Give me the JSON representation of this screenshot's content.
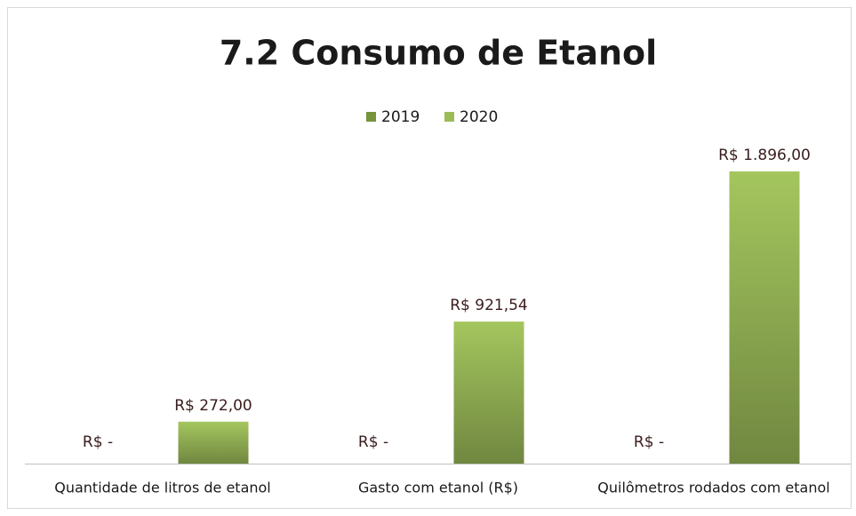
{
  "chart_data": {
    "type": "bar",
    "title": "7.2 Consumo de Etanol",
    "categories": [
      "Quantidade de litros de etanol",
      "Gasto com etanol (R$)",
      "Quilômetros rodados com etanol"
    ],
    "series": [
      {
        "name": "2019",
        "color": "#77933c",
        "values": [
          0,
          0,
          0
        ],
        "value_labels": [
          "R$ -",
          "R$ -",
          "R$ -"
        ]
      },
      {
        "name": "2020",
        "color": "#9bbb59",
        "values": [
          272,
          921.54,
          1896
        ],
        "value_labels": [
          "R$ 272,00",
          "R$ 921,54",
          "R$ 1.896,00"
        ]
      }
    ],
    "legend": "top"
  }
}
